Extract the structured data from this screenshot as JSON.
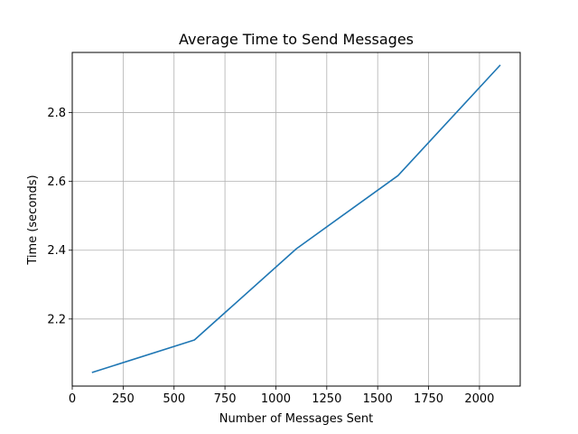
{
  "chart_data": {
    "type": "line",
    "title": "Average Time to Send Messages",
    "xlabel": "Number of Messages Sent",
    "ylabel": "Time (seconds)",
    "xlim": [
      0,
      2200
    ],
    "ylim": [
      2.005,
      2.975
    ],
    "grid": true,
    "x_ticks": [
      0,
      250,
      500,
      750,
      1000,
      1250,
      1500,
      1750,
      2000
    ],
    "x_tick_labels": [
      "0",
      "250",
      "500",
      "750",
      "1000",
      "1250",
      "1500",
      "1750",
      "2000"
    ],
    "y_ticks": [
      2.2,
      2.4,
      2.6,
      2.8
    ],
    "y_tick_labels": [
      "2.2",
      "2.4",
      "2.6",
      "2.8"
    ],
    "series": [
      {
        "color": "#1f77b4",
        "x": [
          100,
          600,
          1100,
          1600,
          2100
        ],
        "y": [
          2.045,
          2.139,
          2.404,
          2.617,
          2.937
        ]
      }
    ]
  }
}
